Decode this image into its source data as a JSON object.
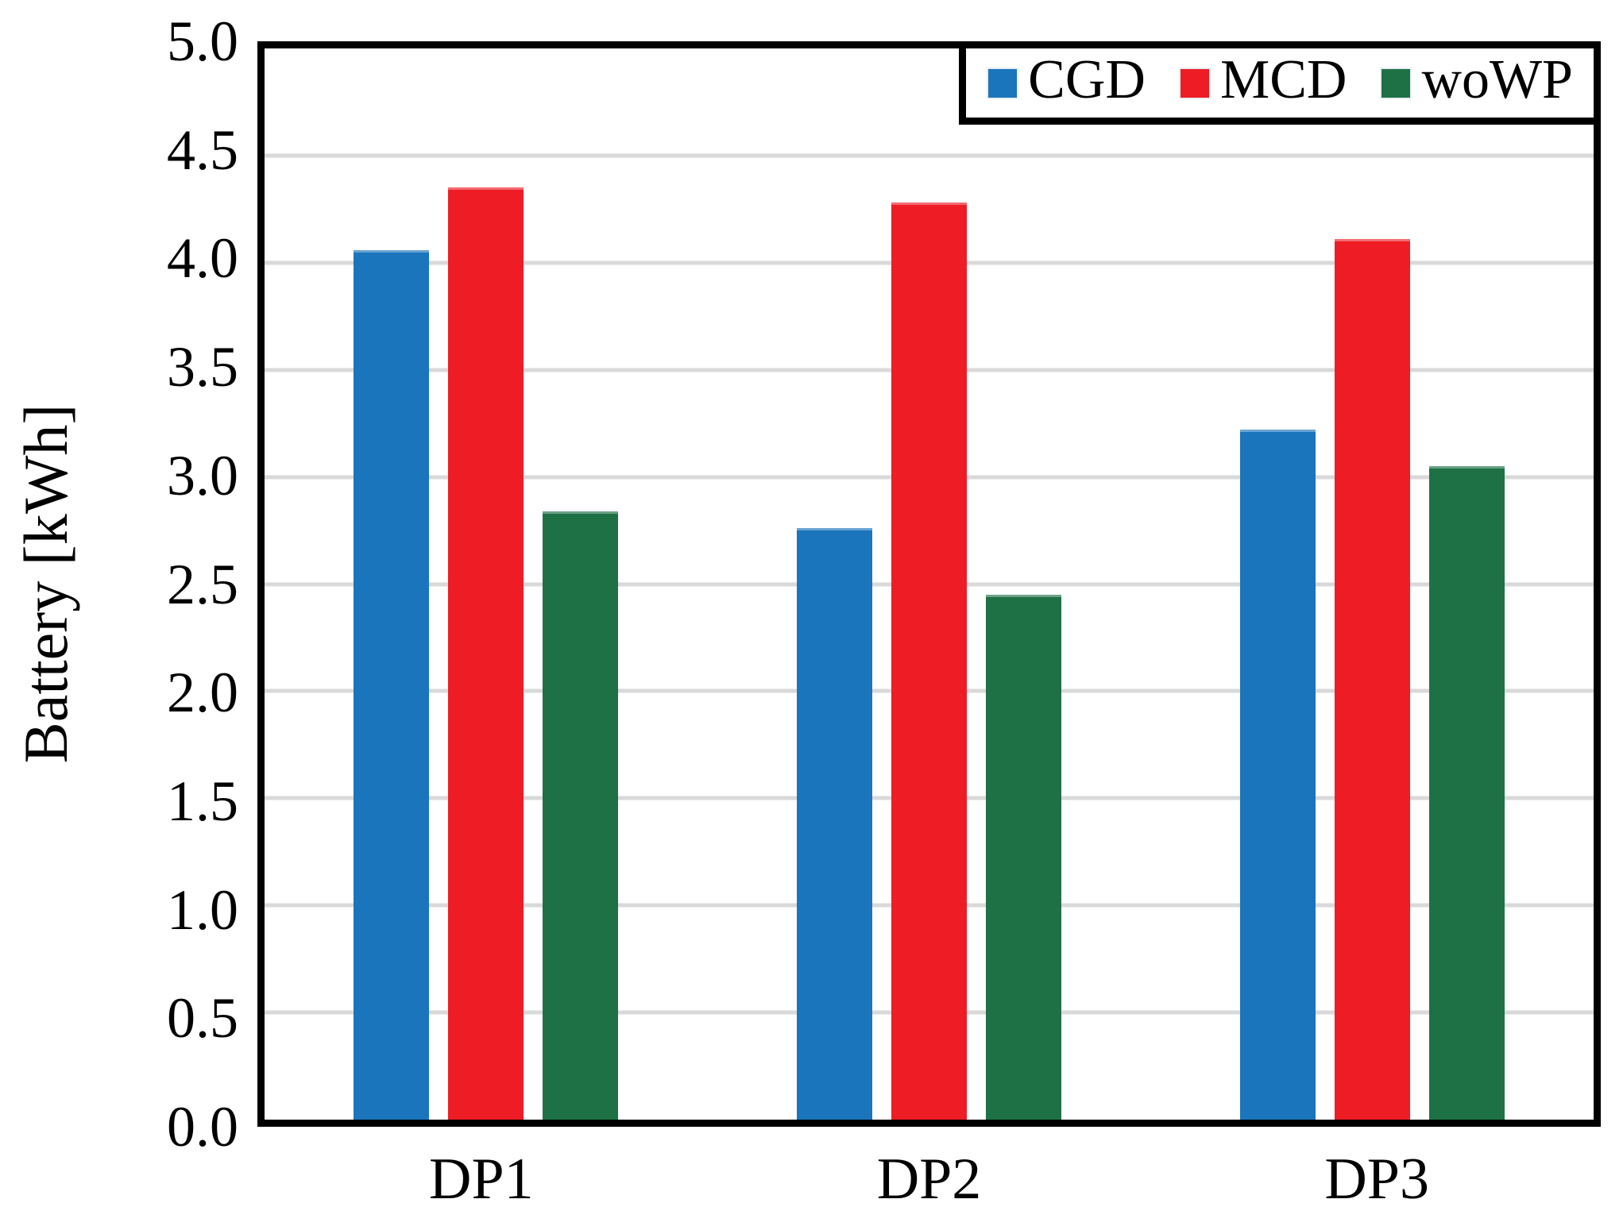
{
  "chart_data": {
    "type": "bar",
    "title": "",
    "xlabel": "",
    "ylabel": "Battery [kWh]",
    "categories": [
      "DP1",
      "DP2",
      "DP3"
    ],
    "series": [
      {
        "name": "CGD",
        "color": "#1B75BC",
        "values": [
          4.06,
          2.76,
          3.22
        ]
      },
      {
        "name": "MCD",
        "color": "#EE1C25",
        "values": [
          4.35,
          4.28,
          4.11
        ]
      },
      {
        "name": "woWP",
        "color": "#1E7145",
        "values": [
          2.84,
          2.45,
          3.05
        ]
      }
    ],
    "ylim": [
      0.0,
      5.0
    ],
    "ytick_step": 0.5,
    "ytick_labels_top_to_bottom": [
      "5.0",
      "4.5",
      "4.0",
      "3.5",
      "3.0",
      "2.5",
      "2.0",
      "1.5",
      "1.0",
      "0.5",
      "0.0"
    ],
    "grid": true,
    "gridline_color": "#d9d9d9",
    "axis_border_color": "#000000",
    "legend_position": "top-right",
    "legend_entries": [
      "CGD",
      "MCD",
      "woWP"
    ]
  }
}
